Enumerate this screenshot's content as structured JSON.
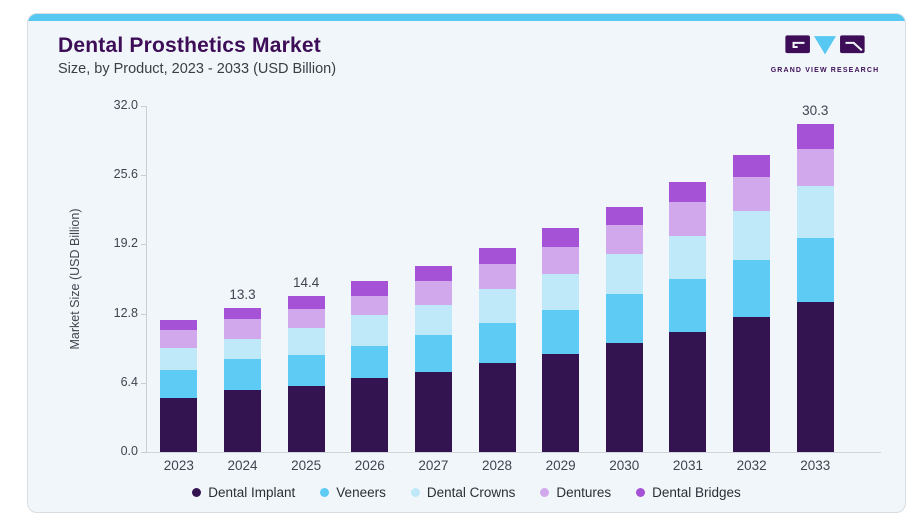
{
  "header": {
    "title": "Dental Prosthetics Market",
    "subtitle": "Size, by Product, 2023 - 2033 (USD Billion)"
  },
  "logo": {
    "brand": "GRAND VIEW RESEARCH"
  },
  "colors": {
    "accent": "#56c8f2",
    "card_background": "#f1f6fa",
    "card_border": "#d8dde2",
    "title_text": "#3d0e57",
    "axis_text": "#3f4450",
    "axis_line": "#c9ced4"
  },
  "chart_data": {
    "type": "bar",
    "stacked": true,
    "title": "Dental Prosthetics Market Size, by Product, 2023 - 2033 (USD Billion)",
    "categories": [
      "2023",
      "2024",
      "2025",
      "2026",
      "2027",
      "2028",
      "2029",
      "2030",
      "2031",
      "2032",
      "2033"
    ],
    "series": [
      {
        "name": "Dental Implant",
        "color": "#331450",
        "values": [
          5.0,
          5.7,
          6.1,
          6.8,
          7.4,
          8.2,
          9.1,
          10.1,
          11.1,
          12.5,
          13.9
        ]
      },
      {
        "name": "Veneers",
        "color": "#5ecbf5",
        "values": [
          2.6,
          2.9,
          2.9,
          3.0,
          3.4,
          3.7,
          4.0,
          4.5,
          4.9,
          5.3,
          5.9
        ]
      },
      {
        "name": "Dental Crowns",
        "color": "#bfe8f8",
        "values": [
          2.0,
          1.9,
          2.5,
          2.9,
          2.8,
          3.2,
          3.4,
          3.7,
          4.0,
          4.5,
          4.8
        ]
      },
      {
        "name": "Dentures",
        "color": "#d2a8ec",
        "values": [
          1.7,
          1.8,
          1.7,
          1.7,
          2.2,
          2.3,
          2.5,
          2.7,
          3.1,
          3.1,
          3.4
        ]
      },
      {
        "name": "Dental Bridges",
        "color": "#a552d6",
        "values": [
          0.9,
          1.0,
          1.2,
          1.4,
          1.4,
          1.5,
          1.7,
          1.7,
          1.9,
          2.1,
          2.3
        ]
      }
    ],
    "totals": [
      12.2,
      13.3,
      14.4,
      15.8,
      17.2,
      18.9,
      20.7,
      22.7,
      25.0,
      27.5,
      30.3
    ],
    "bar_value_labels": {
      "2024": "13.3",
      "2025": "14.4",
      "2033": "30.3"
    },
    "xlabel": "",
    "ylabel": "Market Size (USD Billion)",
    "ylim": [
      0,
      32
    ],
    "yticks": [
      "0.0",
      "6.4",
      "12.8",
      "19.2",
      "25.6",
      "32.0"
    ],
    "grid": false,
    "legend_position": "bottom"
  }
}
